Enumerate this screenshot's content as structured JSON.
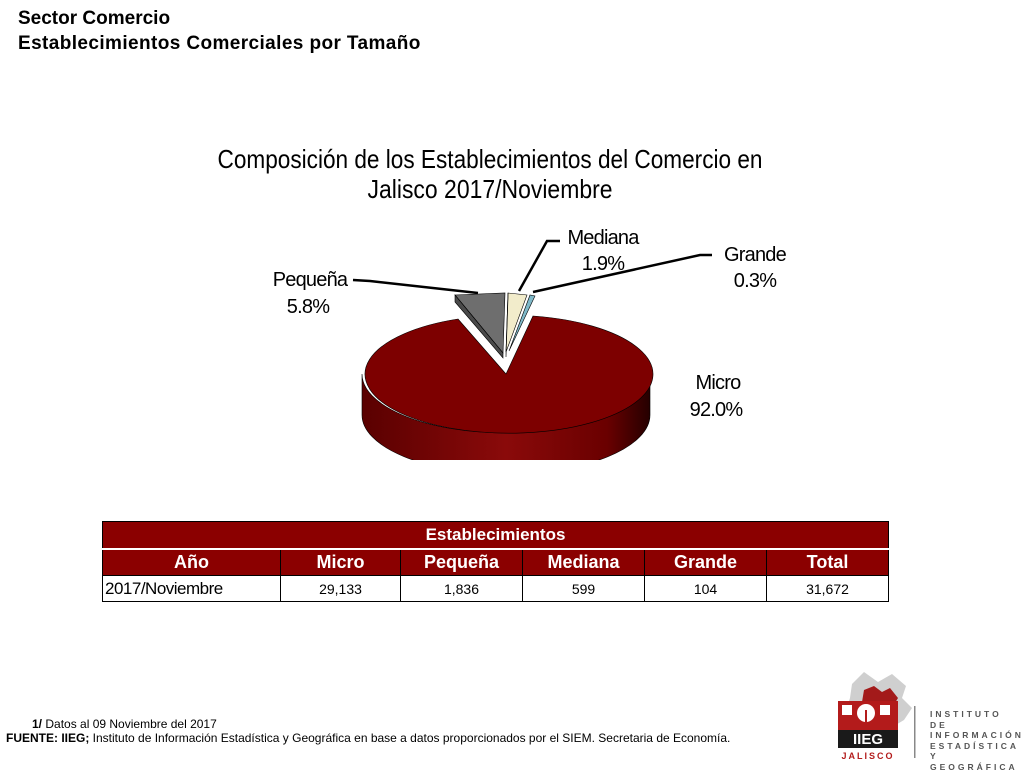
{
  "header": {
    "title": "Sector Comercio",
    "subtitle": "Establecimientos Comerciales por Tamaño"
  },
  "chart_data": {
    "type": "pie",
    "title_line1": "Composición de los Establecimientos del Comercio en",
    "title_line2": "Jalisco 2017/Noviembre",
    "slices": [
      {
        "name": "Micro",
        "value": 92.0,
        "label": "92.0%",
        "color": "#7d0000"
      },
      {
        "name": "Pequeña",
        "value": 5.8,
        "label": "5.8%",
        "color": "#6e6e6e"
      },
      {
        "name": "Mediana",
        "value": 1.9,
        "label": "1.9%",
        "color": "#f2eccb"
      },
      {
        "name": "Grande",
        "value": 0.3,
        "label": "0.3%",
        "color": "#7fb8c8"
      }
    ]
  },
  "table": {
    "banner": "Establecimientos",
    "columns": [
      "Año",
      "Micro",
      "Pequeña",
      "Mediana",
      "Grande",
      "Total"
    ],
    "row": [
      "2017/Noviembre",
      "29,133",
      "1,836",
      "599",
      "104",
      "31,672"
    ]
  },
  "notes": {
    "note1_mark": "1/",
    "note1_text": " Datos al 09 Noviembre del  2017",
    "source_label": "FUENTE: IIEG;",
    "source_text": " Instituto de Información Estadística y Geográfica en base a datos proporcionados por el SIEM. Secretaria de Economía."
  },
  "logo": {
    "acronym": "IIEG",
    "state": "JALISCO",
    "line1": "INSTITUTO DE",
    "line2": "INFORMACIÓN",
    "line3": "ESTADÍSTICA Y",
    "line4": "GEOGRÁFICA",
    "icon": "jalisco-map-logo-icon"
  }
}
